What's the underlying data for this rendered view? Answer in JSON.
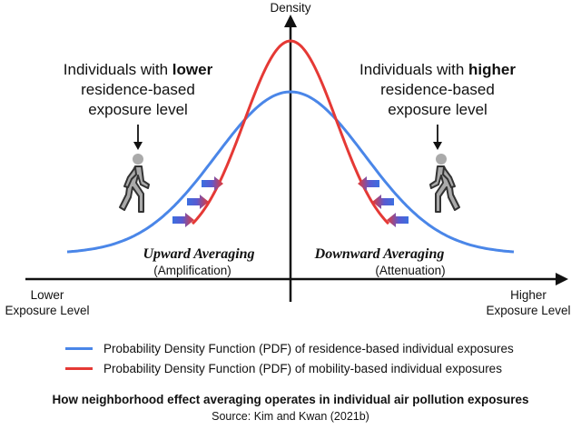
{
  "axis": {
    "y_label": "Density",
    "x_left_line1": "Lower",
    "x_left_line2": "Exposure Level",
    "x_right_line1": "Higher",
    "x_right_line2": "Exposure Level"
  },
  "left_note": {
    "line1_prefix": "Individuals with ",
    "line1_bold": "lower",
    "line2": "residence-based",
    "line3": "exposure level"
  },
  "right_note": {
    "line1_prefix": "Individuals with ",
    "line1_bold": "higher",
    "line2": "residence-based",
    "line3": "exposure level"
  },
  "annotations": {
    "upward_title": "Upward Averaging",
    "upward_sub": "(Amplification)",
    "downward_title": "Downward Averaging",
    "downward_sub": "(Attenuation)"
  },
  "legend": [
    {
      "label": "Probability Density Function (PDF) of residence-based individual exposures",
      "color": "#4a86e8"
    },
    {
      "label": "Probability Density Function (PDF) of mobility-based individual exposures",
      "color": "#e53935"
    }
  ],
  "caption": {
    "title": "How neighborhood effect averaging operates in individual air pollution exposures",
    "source": "Source: Kim and Kwan (2021b)"
  },
  "icons": {
    "person": "walking-person-icon",
    "arrow": "blue-red-arrow-icon"
  }
}
